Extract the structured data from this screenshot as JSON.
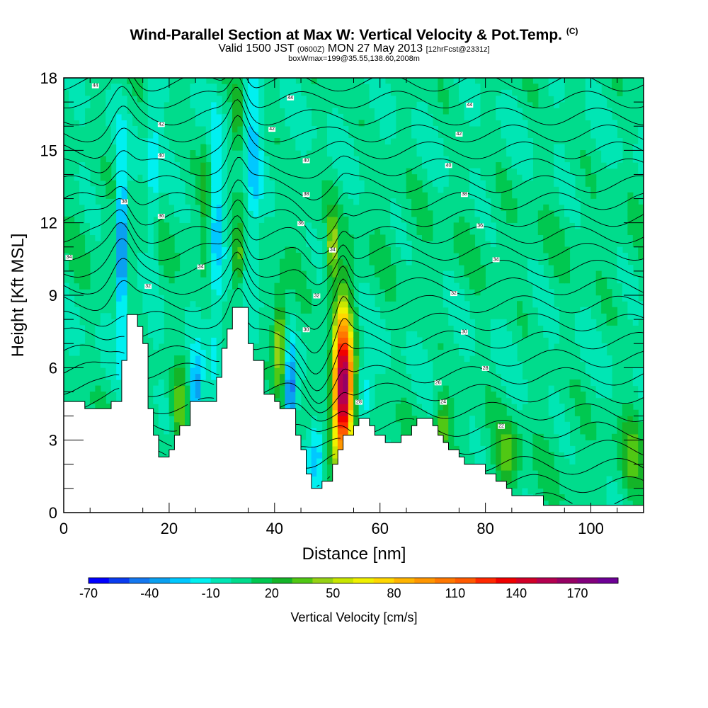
{
  "title": "Wind-Parallel Section at Max W: Vertical Velocity & Pot.Temp.",
  "title_mark": "(C)",
  "subtitle_main_a": "Valid 1500 JST",
  "subtitle_small_a": "(0600Z)",
  "subtitle_main_b": "MON 27 May 2013",
  "subtitle_small_b": "[12hrFcst@2331z]",
  "subtitle2": "boxWmax=199@35.55,138.60,2008m",
  "chart_data": {
    "type": "heatmap",
    "xlabel": "Distance [nm]",
    "ylabel": "Height [Kft MSL]",
    "xlim": [
      0,
      110
    ],
    "ylim": [
      0,
      18
    ],
    "x_ticks": [
      0,
      20,
      40,
      60,
      80,
      100
    ],
    "y_ticks": [
      0,
      3,
      6,
      9,
      12,
      15,
      18
    ],
    "x_tick_labels": [
      "0",
      "20",
      "40",
      "60",
      "80",
      "100"
    ],
    "y_tick_labels": [
      "0",
      "3",
      "6",
      "9",
      "12",
      "15",
      "18"
    ],
    "colorbar": {
      "label": "Vertical Velocity [cm/s]",
      "min": -70,
      "max": 190,
      "step": 10,
      "tick_values": [
        -70,
        -40,
        -10,
        20,
        50,
        80,
        110,
        140,
        170
      ],
      "tick_labels": [
        "-70",
        "-40",
        "-10",
        "20",
        "50",
        "80",
        "110",
        "140",
        "170"
      ],
      "colors": [
        "#0000ff",
        "#0a3cf0",
        "#1478f0",
        "#0aa0f0",
        "#00c8ff",
        "#00f0f0",
        "#00e6b4",
        "#00dc8c",
        "#00c850",
        "#14b428",
        "#50c814",
        "#96d214",
        "#c8e600",
        "#f0f000",
        "#ffd700",
        "#ffb400",
        "#ff9600",
        "#ff7800",
        "#ff5a00",
        "#ff2800",
        "#f00000",
        "#d20028",
        "#b40050",
        "#960064",
        "#82007d",
        "#6e0096"
      ]
    },
    "terrain": [
      [
        0,
        4.6
      ],
      [
        4,
        4.6
      ],
      [
        4,
        4.3
      ],
      [
        9,
        4.3
      ],
      [
        9,
        4.6
      ],
      [
        11,
        4.6
      ],
      [
        11,
        6.3
      ],
      [
        12,
        6.3
      ],
      [
        12,
        8.2
      ],
      [
        14,
        8.2
      ],
      [
        14,
        7.7
      ],
      [
        15,
        7.7
      ],
      [
        15,
        7.0
      ],
      [
        16,
        7.0
      ],
      [
        16,
        4.3
      ],
      [
        17,
        4.3
      ],
      [
        17,
        3.2
      ],
      [
        18,
        3.2
      ],
      [
        18,
        2.3
      ],
      [
        20,
        2.3
      ],
      [
        20,
        2.6
      ],
      [
        21,
        2.6
      ],
      [
        21,
        3.2
      ],
      [
        22,
        3.2
      ],
      [
        22,
        3.6
      ],
      [
        24,
        3.6
      ],
      [
        24,
        4.6
      ],
      [
        29,
        4.6
      ],
      [
        29,
        5.6
      ],
      [
        30,
        5.6
      ],
      [
        30,
        6.8
      ],
      [
        31,
        6.8
      ],
      [
        31,
        7.6
      ],
      [
        32,
        7.6
      ],
      [
        32,
        8.5
      ],
      [
        35,
        8.5
      ],
      [
        35,
        7.0
      ],
      [
        36,
        7.0
      ],
      [
        36,
        6.3
      ],
      [
        38,
        6.3
      ],
      [
        38,
        4.9
      ],
      [
        40,
        4.9
      ],
      [
        40,
        4.6
      ],
      [
        41,
        4.6
      ],
      [
        41,
        4.3
      ],
      [
        44,
        4.3
      ],
      [
        44,
        3.2
      ],
      [
        45,
        3.2
      ],
      [
        45,
        2.6
      ],
      [
        46,
        2.6
      ],
      [
        46,
        1.6
      ],
      [
        47,
        1.6
      ],
      [
        47,
        1.0
      ],
      [
        49,
        1.0
      ],
      [
        49,
        1.3
      ],
      [
        51,
        1.3
      ],
      [
        51,
        2.0
      ],
      [
        52,
        2.0
      ],
      [
        52,
        2.6
      ],
      [
        53,
        2.6
      ],
      [
        53,
        3.2
      ],
      [
        55,
        3.2
      ],
      [
        55,
        3.6
      ],
      [
        56,
        3.6
      ],
      [
        56,
        3.9
      ],
      [
        58,
        3.9
      ],
      [
        58,
        3.6
      ],
      [
        59,
        3.6
      ],
      [
        59,
        3.2
      ],
      [
        61,
        3.2
      ],
      [
        61,
        2.9
      ],
      [
        64,
        2.9
      ],
      [
        64,
        3.2
      ],
      [
        66,
        3.2
      ],
      [
        66,
        3.6
      ],
      [
        67,
        3.6
      ],
      [
        67,
        3.9
      ],
      [
        70,
        3.9
      ],
      [
        70,
        3.6
      ],
      [
        71,
        3.6
      ],
      [
        71,
        3.2
      ],
      [
        72,
        3.2
      ],
      [
        72,
        2.9
      ],
      [
        73,
        2.9
      ],
      [
        73,
        2.6
      ],
      [
        75,
        2.6
      ],
      [
        75,
        2.3
      ],
      [
        76,
        2.3
      ],
      [
        76,
        2.0
      ],
      [
        80,
        2.0
      ],
      [
        80,
        1.6
      ],
      [
        82,
        1.6
      ],
      [
        82,
        1.3
      ],
      [
        84,
        1.3
      ],
      [
        84,
        1.0
      ],
      [
        85,
        1.0
      ],
      [
        85,
        0.7
      ],
      [
        91,
        0.7
      ],
      [
        91,
        0.3
      ],
      [
        110,
        0.3
      ]
    ],
    "w_features": [
      {
        "x": 53,
        "z": 5.2,
        "sx": 1.3,
        "sz": 2.2,
        "w": 175
      },
      {
        "x": 41,
        "z": 7.0,
        "sx": 0.9,
        "sz": 1.3,
        "w": 55
      },
      {
        "x": 51,
        "z": 11.0,
        "sx": 0.6,
        "sz": 1.0,
        "w": 45
      },
      {
        "x": 33,
        "z": 10.5,
        "sx": 0.6,
        "sz": 0.9,
        "w": 40
      },
      {
        "x": 22,
        "z": 4.2,
        "sx": 1.0,
        "sz": 1.2,
        "w": 35
      },
      {
        "x": 33,
        "z": 16.5,
        "sx": 0.6,
        "sz": 1.2,
        "w": 30
      },
      {
        "x": 27,
        "z": 13.5,
        "sx": 0.7,
        "sz": 1.5,
        "w": 25
      },
      {
        "x": 72,
        "z": 3.6,
        "sx": 1.0,
        "sz": 0.8,
        "w": 35
      },
      {
        "x": 84,
        "z": 2.4,
        "sx": 1.5,
        "sz": 0.9,
        "w": 30
      },
      {
        "x": 108,
        "z": 2.6,
        "sx": 1.5,
        "sz": 1.2,
        "w": 25
      },
      {
        "x": 11,
        "z": 11.0,
        "sx": 0.6,
        "sz": 2.5,
        "w": -60
      },
      {
        "x": 43,
        "z": 5.0,
        "sx": 0.7,
        "sz": 1.3,
        "w": -55
      },
      {
        "x": 25,
        "z": 5.0,
        "sx": 0.8,
        "sz": 1.0,
        "w": -45
      },
      {
        "x": 48,
        "z": 2.5,
        "sx": 1.2,
        "sz": 1.0,
        "w": -35
      },
      {
        "x": 29,
        "z": 11.5,
        "sx": 1.0,
        "sz": 3.5,
        "w": -30
      },
      {
        "x": 36,
        "z": 14.0,
        "sx": 1.0,
        "sz": 4.0,
        "w": -25
      },
      {
        "x": 57,
        "z": 5.0,
        "sx": 1.0,
        "sz": 1.0,
        "w": -25
      },
      {
        "x": 17,
        "z": 14.0,
        "sx": 0.8,
        "sz": 3.0,
        "w": -20
      }
    ],
    "theta_labels": [
      {
        "x": 6,
        "z": 17.7,
        "text": "44"
      },
      {
        "x": 18.5,
        "z": 16.1,
        "text": "42"
      },
      {
        "x": 18.5,
        "z": 14.8,
        "text": "40"
      },
      {
        "x": 11.5,
        "z": 12.9,
        "text": "38"
      },
      {
        "x": 18.5,
        "z": 12.3,
        "text": "36"
      },
      {
        "x": 1,
        "z": 10.6,
        "text": "34"
      },
      {
        "x": 16,
        "z": 9.4,
        "text": "32"
      },
      {
        "x": 26,
        "z": 10.2,
        "text": "34"
      },
      {
        "x": 43,
        "z": 17.2,
        "text": "44"
      },
      {
        "x": 39.5,
        "z": 15.9,
        "text": "42"
      },
      {
        "x": 46,
        "z": 14.6,
        "text": "40"
      },
      {
        "x": 46,
        "z": 13.2,
        "text": "38"
      },
      {
        "x": 45,
        "z": 12.0,
        "text": "36"
      },
      {
        "x": 51,
        "z": 10.9,
        "text": "34"
      },
      {
        "x": 48,
        "z": 9.0,
        "text": "32"
      },
      {
        "x": 46,
        "z": 7.6,
        "text": "30"
      },
      {
        "x": 56,
        "z": 4.6,
        "text": "28"
      },
      {
        "x": 77,
        "z": 16.9,
        "text": "44"
      },
      {
        "x": 75,
        "z": 15.7,
        "text": "42"
      },
      {
        "x": 73,
        "z": 14.4,
        "text": "40"
      },
      {
        "x": 76,
        "z": 13.2,
        "text": "38"
      },
      {
        "x": 79,
        "z": 11.9,
        "text": "36"
      },
      {
        "x": 82,
        "z": 10.5,
        "text": "34"
      },
      {
        "x": 74,
        "z": 9.1,
        "text": "32"
      },
      {
        "x": 76,
        "z": 7.5,
        "text": "30"
      },
      {
        "x": 80,
        "z": 6.0,
        "text": "28"
      },
      {
        "x": 71,
        "z": 5.4,
        "text": "26"
      },
      {
        "x": 72,
        "z": 4.6,
        "text": "24"
      },
      {
        "x": 83,
        "z": 3.6,
        "text": "22"
      }
    ]
  }
}
